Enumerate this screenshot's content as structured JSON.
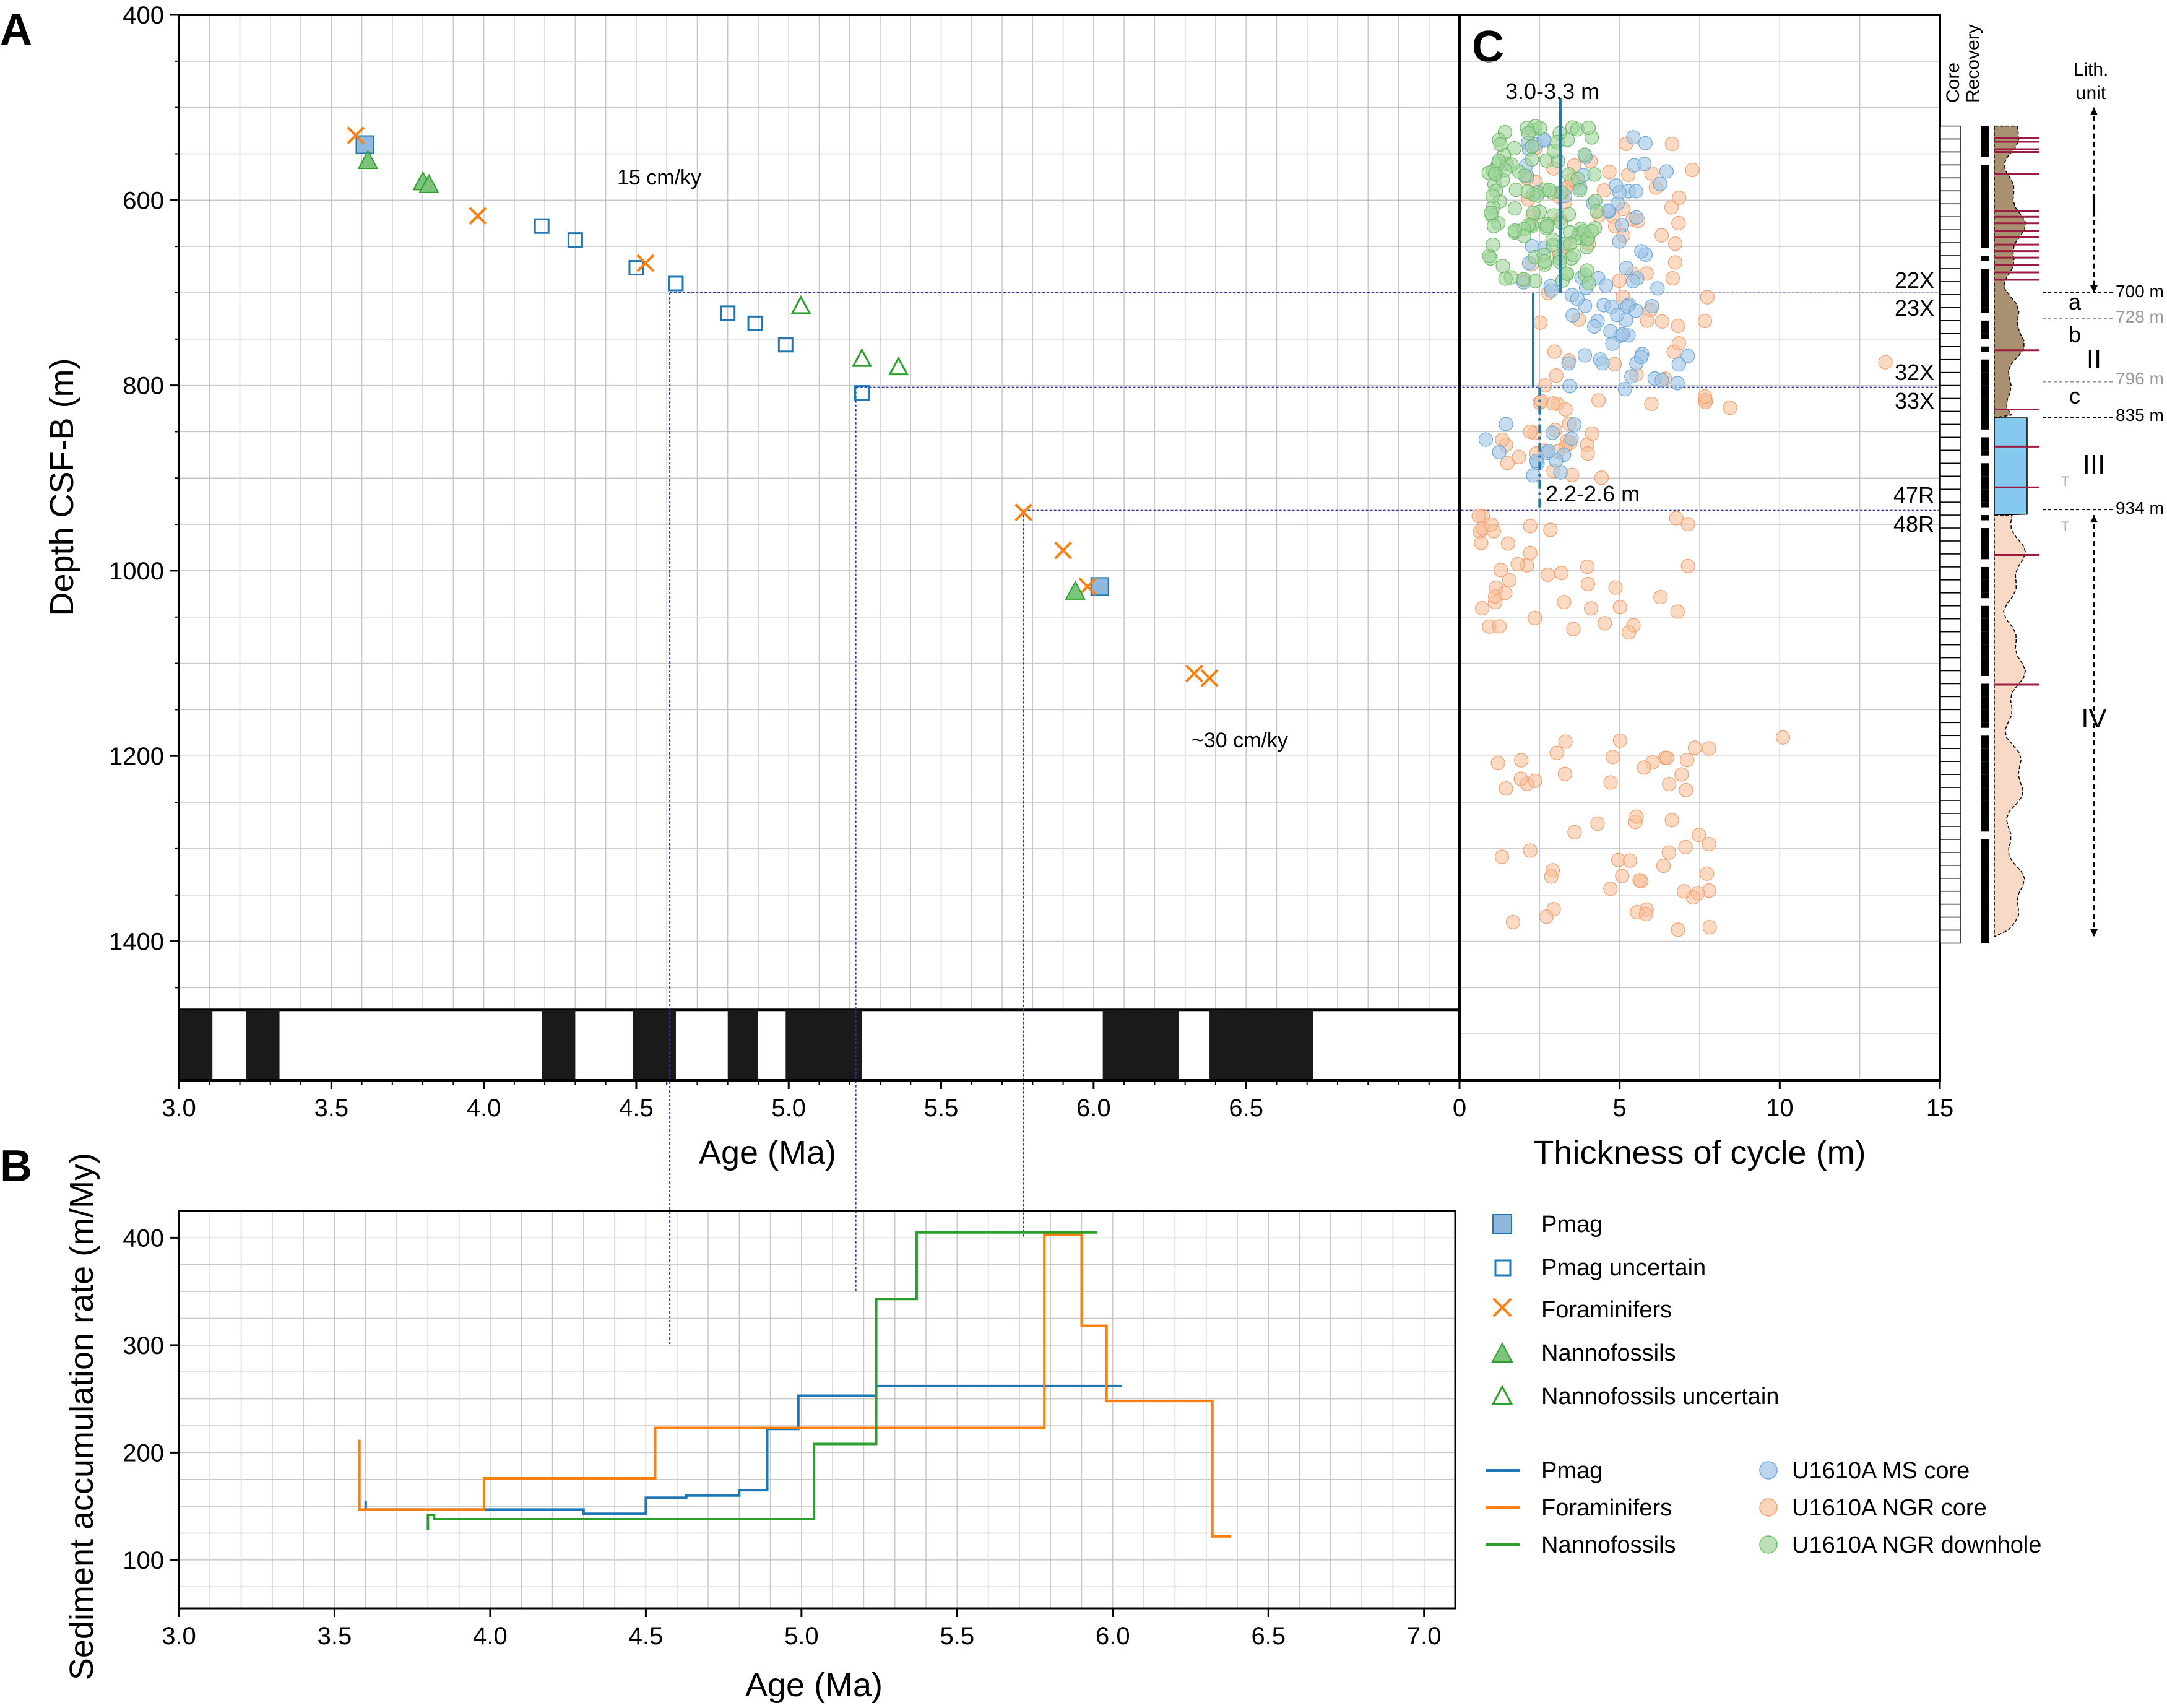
{
  "panels": {
    "a": "A",
    "b": "B",
    "c": "C"
  },
  "colors": {
    "pmag": "#1f77b4",
    "pmag_fill": "#8fb8dc",
    "foram": "#ff7f0e",
    "nanno": "#2ca02c",
    "nanno_fill": "#7cc47c",
    "ms": "#9ec5e6",
    "ngr": "#f8c09a",
    "ngr_dh": "#9fd49a",
    "guide": "#3333aa",
    "unit_I_II": "#a89070",
    "unit_III": "#86c9ef",
    "unit_IV": "#f7d9c6",
    "marker": "#9b1b40"
  },
  "chart_data": [
    {
      "id": "A",
      "type": "scatter",
      "xlabel": "Age (Ma)",
      "ylabel": "Depth CSF-B (m)",
      "xlim": [
        3.0,
        7.2
      ],
      "ylim": [
        1550,
        400
      ],
      "xticks": [
        "3.0",
        "3.5",
        "4.0",
        "4.5",
        "5.0",
        "5.5",
        "6.0",
        "6.5"
      ],
      "yticks": [
        "400",
        "600",
        "800",
        "1000",
        "1200",
        "1400"
      ],
      "annotations": [
        "15 cm/ky",
        "~30 cm/ky"
      ],
      "grid": true,
      "series": [
        {
          "name": "Pmag",
          "marker": "filled-square",
          "x": [
            3.61,
            6.02
          ],
          "y": [
            540,
            1017
          ]
        },
        {
          "name": "Pmag uncertain",
          "marker": "open-square",
          "x": [
            4.19,
            4.3,
            4.5,
            4.63,
            4.8,
            4.89,
            4.99,
            5.24
          ],
          "y": [
            628,
            643,
            673,
            690,
            722,
            733,
            756,
            808
          ]
        },
        {
          "name": "Foraminifers",
          "marker": "x",
          "x": [
            3.58,
            3.98,
            4.53,
            5.77,
            5.9,
            5.98,
            6.33,
            6.38
          ],
          "y": [
            530,
            617,
            668,
            937,
            978,
            1017,
            1111,
            1116
          ]
        },
        {
          "name": "Nannofossils",
          "marker": "filled-triangle",
          "x": [
            3.62,
            3.8,
            3.82,
            5.94
          ],
          "y": [
            557,
            580,
            583,
            1022
          ]
        },
        {
          "name": "Nannofossils uncertain",
          "marker": "open-triangle",
          "x": [
            5.04,
            5.24,
            5.36
          ],
          "y": [
            714,
            771,
            780
          ]
        }
      ],
      "polarity_chron_black_intervals": [
        [
          3.04,
          3.11
        ],
        [
          3.22,
          3.33
        ],
        [
          4.19,
          4.3
        ],
        [
          4.49,
          4.63
        ],
        [
          4.8,
          4.9
        ],
        [
          4.99,
          5.24
        ],
        [
          6.03,
          6.28
        ],
        [
          6.38,
          6.72
        ]
      ],
      "guide_lines": [
        {
          "age": 4.61,
          "depth": 700,
          "rate_end": 300
        },
        {
          "age": 5.22,
          "depth": 802,
          "rate_end": 350
        },
        {
          "age": 5.77,
          "depth": 935,
          "rate_end": 400
        }
      ]
    },
    {
      "id": "B",
      "type": "line",
      "xlabel": "Age (Ma)",
      "ylabel": "Sediment accumulation rate (m/My)",
      "xlim": [
        3.0,
        7.1
      ],
      "ylim": [
        55,
        425
      ],
      "xticks": [
        "3.0",
        "3.5",
        "4.0",
        "4.5",
        "5.0",
        "5.5",
        "6.0",
        "6.5",
        "7.0"
      ],
      "yticks": [
        "100",
        "200",
        "300",
        "400"
      ],
      "grid": true,
      "series": [
        {
          "name": "Pmag",
          "x": [
            3.6,
            3.6,
            4.3,
            4.3,
            4.5,
            4.5,
            4.63,
            4.63,
            4.8,
            4.8,
            4.89,
            4.89,
            4.99,
            4.99,
            5.24,
            5.24,
            6.03
          ],
          "y": [
            155,
            147,
            147,
            143,
            143,
            158,
            158,
            160,
            160,
            165,
            165,
            222,
            222,
            253,
            253,
            262,
            262
          ]
        },
        {
          "name": "Foraminifers",
          "x": [
            3.58,
            3.58,
            3.98,
            3.98,
            4.53,
            4.53,
            5.78,
            5.78,
            5.9,
            5.9,
            5.98,
            5.98,
            6.32,
            6.32,
            6.38
          ],
          "y": [
            212,
            147,
            147,
            176,
            176,
            223,
            223,
            403,
            403,
            318,
            318,
            248,
            248,
            122,
            122
          ]
        },
        {
          "name": "Nannofossils",
          "x": [
            3.8,
            3.8,
            3.82,
            3.82,
            5.04,
            5.04,
            5.24,
            5.24,
            5.37,
            5.37,
            5.95
          ],
          "y": [
            128,
            142,
            142,
            138,
            138,
            208,
            208,
            343,
            343,
            405,
            405
          ]
        }
      ]
    },
    {
      "id": "C",
      "type": "scatter",
      "xlabel": "Thickness of cycle (m)",
      "xlim": [
        0,
        15
      ],
      "xticks": [
        "0",
        "5",
        "10",
        "15"
      ],
      "shared_y_with": "A",
      "annotations": [
        "3.0-3.3 m",
        "2.2-2.6 m"
      ],
      "core_boundary_depths": [
        {
          "upper": "22X",
          "lower": "23X",
          "depth": 700
        },
        {
          "upper": "32X",
          "lower": "33X",
          "depth": 802
        },
        {
          "upper": "47R",
          "lower": "48R",
          "depth": 935
        }
      ],
      "series": [
        {
          "name": "U1610A MS core"
        },
        {
          "name": "U1610A NGR core"
        },
        {
          "name": "U1610A NGR downhole"
        }
      ]
    }
  ],
  "stratigraphy": {
    "core_label": "Core",
    "recovery_label": "Recovery",
    "lith_label_1": "Lith.",
    "lith_label_2": "unit",
    "units": [
      "I",
      "II",
      "III",
      "IV"
    ],
    "subunits": [
      "a",
      "b",
      "c"
    ],
    "boundaries": [
      "700 m",
      "835 m",
      "934 m"
    ],
    "sub_boundaries": [
      "728 m",
      "796 m"
    ],
    "tag": "T"
  },
  "legend": {
    "pmag": "Pmag",
    "pmag_uncertain": "Pmag uncertain",
    "foram": "Foraminifers",
    "nanno": "Nannofossils",
    "nanno_uncertain": "Nannofossils uncertain",
    "line_pmag": "Pmag",
    "line_foram": "Foraminifers",
    "line_nanno": "Nannofossils",
    "ms_core": "U1610A MS core",
    "ngr_core": "U1610A NGR core",
    "ngr_downhole": "U1610A NGR downhole"
  }
}
